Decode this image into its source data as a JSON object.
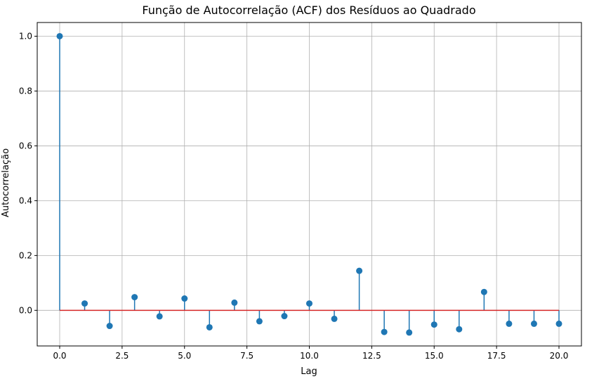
{
  "chart_data": {
    "type": "stem",
    "title": "Função de Autocorrelação (ACF) dos Resíduos ao Quadrado",
    "xlabel": "Lag",
    "ylabel": "Autocorrelação",
    "xlim": [
      -0.9,
      20.9
    ],
    "ylim": [
      -0.13,
      1.05
    ],
    "x_ticks": [
      0.0,
      2.5,
      5.0,
      7.5,
      10.0,
      12.5,
      15.0,
      17.5,
      20.0
    ],
    "x_tick_labels": [
      "0.0",
      "2.5",
      "5.0",
      "7.5",
      "10.0",
      "12.5",
      "15.0",
      "17.5",
      "20.0"
    ],
    "y_ticks": [
      0.0,
      0.2,
      0.4,
      0.6,
      0.8,
      1.0
    ],
    "y_tick_labels": [
      "0.0",
      "0.2",
      "0.4",
      "0.6",
      "0.8",
      "1.0"
    ],
    "grid": true,
    "lags": [
      0,
      1,
      2,
      3,
      4,
      5,
      6,
      7,
      8,
      9,
      10,
      11,
      12,
      13,
      14,
      15,
      16,
      17,
      18,
      19,
      20
    ],
    "values": [
      1.0,
      0.025,
      -0.057,
      0.048,
      -0.022,
      0.043,
      -0.062,
      0.028,
      -0.04,
      -0.021,
      0.025,
      -0.031,
      0.144,
      -0.079,
      -0.081,
      -0.052,
      -0.069,
      0.067,
      -0.049,
      -0.049,
      -0.049
    ],
    "baseline": 0,
    "colors": {
      "stem": "#1f77b4",
      "marker": "#1f77b4",
      "baseline": "#d62728",
      "grid": "#b0b0b0",
      "axis": "#000000"
    }
  }
}
